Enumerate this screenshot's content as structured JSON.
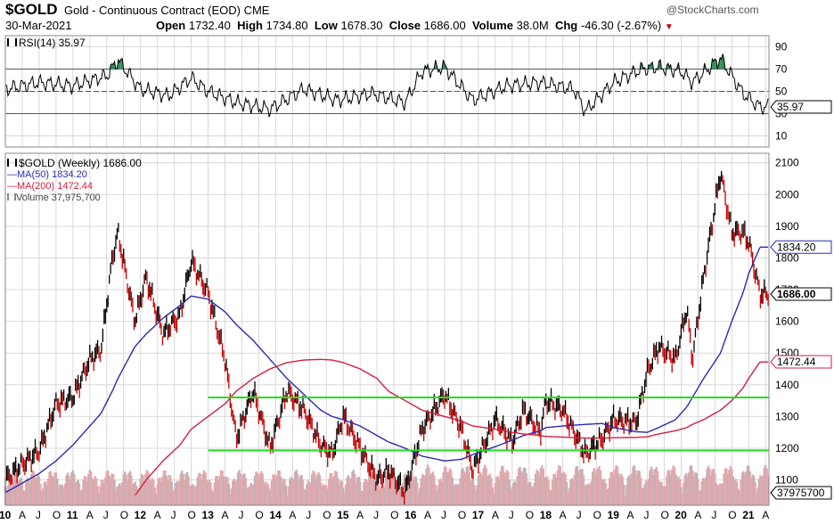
{
  "header": {
    "symbol": "$GOLD",
    "description": "Gold - Continuous Contract (EOD)",
    "exchange": "CME",
    "watermark": "@StockCharts.com",
    "date": "30-Mar-2021",
    "open_label": "Open",
    "open_value": "1732.40",
    "high_label": "High",
    "high_value": "1734.80",
    "low_label": "Low",
    "low_value": "1678.30",
    "close_label": "Close",
    "close_value": "1686.00",
    "volume_label": "Volume",
    "volume_value": "38.0M",
    "chg_label": "Chg",
    "chg_value": "-46.30 (-2.67%)",
    "chg_arrow": "▼"
  },
  "rsi_legend": "RSI(14) 35.97",
  "price_legend": {
    "title": "$GOLD (Weekly) 1686.00",
    "ma50": "MA(50) 1834.20",
    "ma200": "MA(200) 1472.44",
    "volume": "Volume 37,975,700"
  },
  "colors": {
    "price": "#000000",
    "ma50": "#2b2bb0",
    "ma200": "#d2213e",
    "volume": "#e3a8ae",
    "volume_alt": "#b5b5b5",
    "trendline": "#1fe01f",
    "rsi_fill": "#2e8b57",
    "grid": "#d8d8d8",
    "down_arrow": "#c00000"
  },
  "chart_data": [
    {
      "type": "line",
      "name": "RSI(14)",
      "ylim": [
        0,
        100
      ],
      "y_ticks": [
        "90",
        "70",
        "50",
        "30",
        "10"
      ],
      "reference_lines": [
        70,
        50,
        30
      ],
      "current_value": "35.97",
      "x": [
        "2010-01",
        "2010-07",
        "2011-01",
        "2011-07",
        "2011-09",
        "2012-01",
        "2012-06",
        "2012-10",
        "2013-01",
        "2013-06",
        "2013-12",
        "2014-06",
        "2014-12",
        "2015-06",
        "2015-12",
        "2016-03",
        "2016-07",
        "2016-12",
        "2017-06",
        "2017-12",
        "2018-06",
        "2018-08",
        "2019-01",
        "2019-06",
        "2019-09",
        "2020-01",
        "2020-03",
        "2020-08",
        "2020-12",
        "2021-03"
      ],
      "y": [
        52,
        58,
        55,
        64,
        78,
        52,
        46,
        62,
        50,
        40,
        34,
        52,
        42,
        48,
        40,
        68,
        72,
        42,
        55,
        58,
        52,
        32,
        58,
        70,
        72,
        68,
        58,
        80,
        48,
        36
      ]
    },
    {
      "type": "line",
      "title": "$GOLD (Weekly) 1686.00",
      "ylim": [
        1020,
        2130
      ],
      "y_ticks": [
        "2100",
        "2000",
        "1900",
        "1800",
        "1700",
        "1600",
        "1500",
        "1400",
        "1300",
        "1200",
        "1100"
      ],
      "x_ticks": [
        "10",
        "A",
        "J",
        "O",
        "11",
        "A",
        "J",
        "O",
        "12",
        "A",
        "J",
        "O",
        "13",
        "A",
        "J",
        "O",
        "14",
        "A",
        "J",
        "O",
        "15",
        "A",
        "J",
        "O",
        "16",
        "A",
        "J",
        "O",
        "17",
        "A",
        "J",
        "O",
        "18",
        "A",
        "J",
        "O",
        "19",
        "A",
        "J",
        "O",
        "20",
        "A",
        "J",
        "O",
        "21",
        "A"
      ],
      "x": [
        "2010-01",
        "2010-04",
        "2010-07",
        "2010-10",
        "2011-01",
        "2011-04",
        "2011-06",
        "2011-08",
        "2011-09",
        "2011-12",
        "2012-02",
        "2012-05",
        "2012-08",
        "2012-10",
        "2013-01",
        "2013-04",
        "2013-06",
        "2013-09",
        "2013-12",
        "2014-03",
        "2014-06",
        "2014-09",
        "2014-11",
        "2015-01",
        "2015-04",
        "2015-07",
        "2015-09",
        "2015-12",
        "2016-03",
        "2016-07",
        "2016-10",
        "2016-12",
        "2017-04",
        "2017-07",
        "2017-09",
        "2017-12",
        "2018-01",
        "2018-04",
        "2018-08",
        "2018-11",
        "2019-01",
        "2019-05",
        "2019-07",
        "2019-09",
        "2019-12",
        "2020-02",
        "2020-03",
        "2020-05",
        "2020-08",
        "2020-10",
        "2020-12",
        "2021-01",
        "2021-03"
      ],
      "series": [
        {
          "name": "$GOLD",
          "values": [
            1100,
            1150,
            1190,
            1340,
            1360,
            1480,
            1510,
            1800,
            1880,
            1600,
            1740,
            1560,
            1620,
            1790,
            1690,
            1480,
            1230,
            1380,
            1200,
            1380,
            1320,
            1210,
            1180,
            1300,
            1200,
            1100,
            1130,
            1060,
            1260,
            1370,
            1260,
            1130,
            1290,
            1220,
            1320,
            1250,
            1350,
            1320,
            1180,
            1230,
            1290,
            1280,
            1440,
            1520,
            1480,
            1640,
            1480,
            1740,
            2070,
            1880,
            1880,
            1850,
            1686
          ]
        },
        {
          "name": "MA(50) 1834.20",
          "values": [
            1060,
            1090,
            1120,
            1160,
            1210,
            1270,
            1310,
            1380,
            1420,
            1520,
            1560,
            1610,
            1650,
            1680,
            1670,
            1630,
            1590,
            1540,
            1480,
            1420,
            1370,
            1320,
            1300,
            1290,
            1270,
            1240,
            1220,
            1200,
            1175,
            1160,
            1165,
            1180,
            1205,
            1225,
            1240,
            1255,
            1265,
            1270,
            1275,
            1278,
            1265,
            1252,
            1250,
            1265,
            1290,
            1330,
            1360,
            1420,
            1500,
            1600,
            1690,
            1750,
            1834
          ]
        },
        {
          "name": "MA(200) 1472.44",
          "values": [
            null,
            null,
            null,
            null,
            null,
            null,
            null,
            null,
            null,
            1050,
            1100,
            1160,
            1210,
            1260,
            1300,
            1340,
            1380,
            1420,
            1450,
            1470,
            1478,
            1480,
            1478,
            1470,
            1450,
            1420,
            1380,
            1350,
            1320,
            1300,
            1285,
            1270,
            1260,
            1250,
            1245,
            1240,
            1237,
            1235,
            1232,
            1232,
            1233,
            1234,
            1236,
            1245,
            1255,
            1265,
            1275,
            1290,
            1320,
            1350,
            1390,
            1420,
            1472
          ]
        }
      ],
      "current_labels": {
        "price": "1686.00",
        "ma50": "1834.20",
        "ma200": "1472.44",
        "volume": "37975700"
      },
      "horizontal_lines": [
        1360,
        1193
      ],
      "legend": [
        "$GOLD (Weekly) 1686.00",
        "MA(50) 1834.20",
        "MA(200) 1472.44",
        "Volume 37,975,700"
      ]
    }
  ]
}
